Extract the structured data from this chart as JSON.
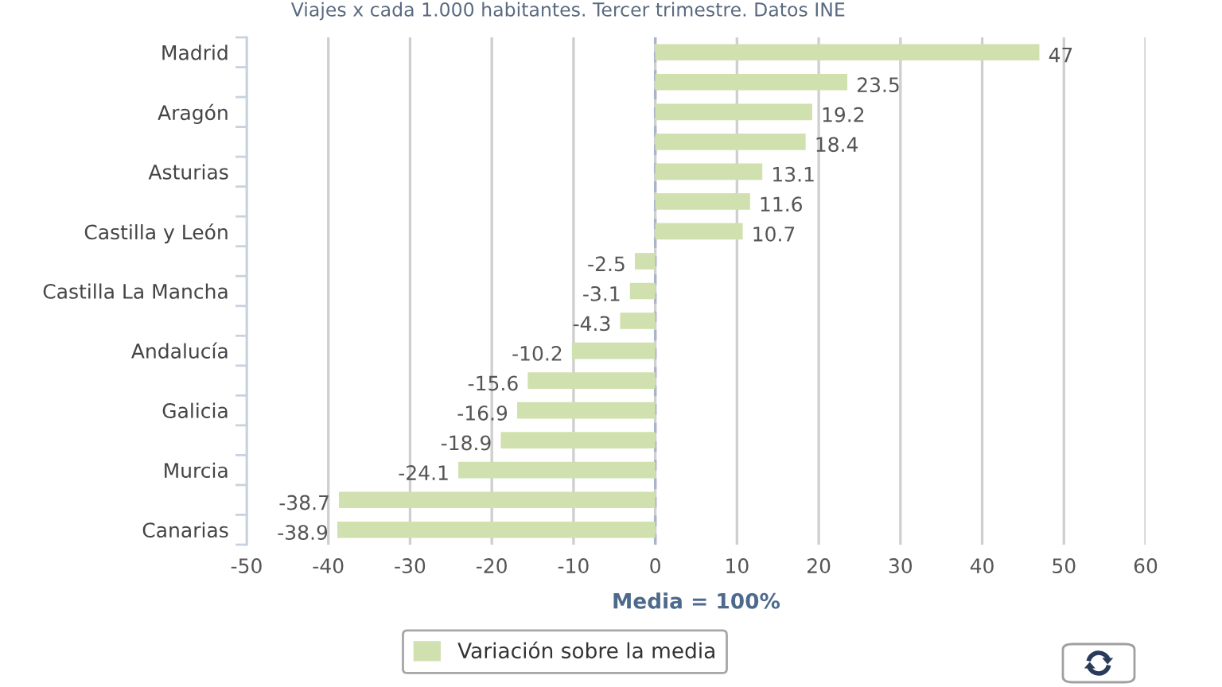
{
  "chart_data": {
    "type": "bar",
    "orientation": "horizontal",
    "subtitle": "Viajes x cada 1.000 habitantes. Tercer trimestre. Datos INE",
    "xlabel": "Media = 100%",
    "categories": [
      "Madrid",
      null,
      "Aragón",
      null,
      "Asturias",
      null,
      "Castilla y León",
      null,
      "Castilla La Mancha",
      null,
      "Andalucía",
      null,
      "Galicia",
      null,
      "Murcia",
      null,
      "Canarias"
    ],
    "series": [
      {
        "name": "Variación sobre la media",
        "color": "#d0e0ae",
        "values": [
          47,
          23.5,
          19.2,
          18.4,
          13.1,
          11.6,
          10.7,
          -2.5,
          -3.1,
          -4.3,
          -10.2,
          -15.6,
          -16.9,
          -18.9,
          -24.1,
          -38.7,
          -38.9
        ]
      }
    ],
    "xlim": [
      -50,
      60
    ],
    "xticks": [
      -50,
      -40,
      -30,
      -20,
      -10,
      0,
      10,
      20,
      30,
      40,
      50,
      60
    ],
    "grid": "x",
    "legend": "bottom",
    "data_labels": true,
    "ref_lines": [
      {
        "axis": "x",
        "value": 0,
        "color": "#a8b4cc",
        "line_style": "dashed"
      }
    ]
  }
}
